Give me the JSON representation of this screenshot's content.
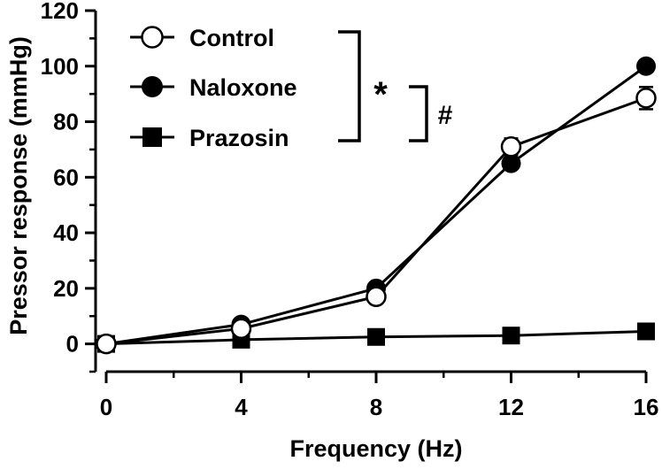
{
  "chart_data": {
    "type": "line",
    "title": "",
    "xlabel": "Frequency (Hz)",
    "ylabel": "Pressor response (mmHg)",
    "x": [
      0,
      4,
      8,
      12,
      16
    ],
    "xticks": [
      "0",
      "4",
      "8",
      "12",
      "16"
    ],
    "xlim": [
      0,
      16
    ],
    "yticks": [
      "0",
      "20",
      "40",
      "60",
      "80",
      "100",
      "120"
    ],
    "ylim": [
      -10,
      120
    ],
    "grid": false,
    "legend_position": "top-left",
    "series": [
      {
        "name": "Control",
        "marker": "open-circle",
        "color": "#000000",
        "values": [
          0,
          5.5,
          17,
          71,
          88.5
        ],
        "errors": [
          0,
          0,
          0,
          3,
          4
        ]
      },
      {
        "name": "Naloxone",
        "marker": "filled-circle",
        "color": "#000000",
        "values": [
          0,
          7,
          20,
          65,
          100
        ],
        "errors": [
          0,
          0,
          0,
          0,
          0
        ]
      },
      {
        "name": "Prazosin",
        "marker": "filled-square",
        "color": "#000000",
        "values": [
          0,
          1.5,
          2.5,
          3,
          4.5
        ],
        "errors": [
          0,
          0,
          0,
          0,
          0
        ]
      }
    ],
    "annotations": [
      {
        "text": "*",
        "meaning": "Control vs Prazosin"
      },
      {
        "text": "#",
        "meaning": "Naloxone vs Prazosin"
      }
    ]
  }
}
